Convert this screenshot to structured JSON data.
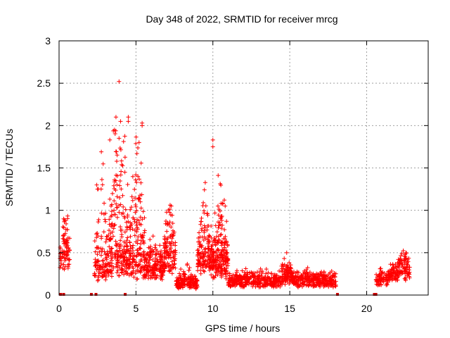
{
  "chart_data": {
    "type": "scatter",
    "title": "Day 348 of 2022, SRMTID for receiver mrcg",
    "xlabel": "GPS time / hours",
    "ylabel": "SRMTID / TECUs",
    "xlim": [
      0,
      24
    ],
    "ylim": [
      0,
      3
    ],
    "xticks": [
      0,
      5,
      10,
      15,
      20
    ],
    "xtick_labels": [
      "0",
      "5",
      "10",
      "15",
      "20"
    ],
    "yticks": [
      0,
      0.5,
      1,
      1.5,
      2,
      2.5,
      3
    ],
    "ytick_labels": [
      "0",
      "0.5",
      "1",
      "1.5",
      "2",
      "2.5",
      "3"
    ],
    "grid": true,
    "marker": "+",
    "series_color": "#ff0000",
    "axis_marks_at_zero_color": "#cc0000",
    "segments": [
      {
        "start": 0.05,
        "end": 0.15,
        "base": 0.35,
        "amp": 0.1,
        "spread": 0.15,
        "count": 12
      },
      {
        "start": 0.2,
        "end": 0.7,
        "base": 0.45,
        "amp": 0.35,
        "spread": 0.25,
        "count": 70
      },
      {
        "start": 2.3,
        "end": 3.2,
        "base": 0.25,
        "amp": 0.9,
        "spread": 0.6,
        "count": 110
      },
      {
        "start": 3.2,
        "end": 4.5,
        "base": 0.35,
        "amp": 1.2,
        "spread": 1.0,
        "count": 220
      },
      {
        "start": 4.5,
        "end": 5.6,
        "base": 0.3,
        "amp": 0.9,
        "spread": 0.8,
        "count": 180
      },
      {
        "start": 5.6,
        "end": 6.8,
        "base": 0.25,
        "amp": 0.25,
        "spread": 0.25,
        "count": 160
      },
      {
        "start": 6.8,
        "end": 7.6,
        "base": 0.4,
        "amp": 0.45,
        "spread": 0.35,
        "count": 110
      },
      {
        "start": 7.6,
        "end": 9.0,
        "base": 0.12,
        "amp": 0.1,
        "spread": 0.12,
        "count": 170
      },
      {
        "start": 9.0,
        "end": 10.0,
        "base": 0.35,
        "amp": 0.55,
        "spread": 0.5,
        "count": 160
      },
      {
        "start": 10.0,
        "end": 11.0,
        "base": 0.3,
        "amp": 0.6,
        "spread": 0.6,
        "count": 200
      },
      {
        "start": 11.0,
        "end": 14.4,
        "base": 0.15,
        "amp": 0.05,
        "spread": 0.1,
        "count": 330
      },
      {
        "start": 14.4,
        "end": 15.2,
        "base": 0.2,
        "amp": 0.1,
        "spread": 0.15,
        "count": 110
      },
      {
        "start": 15.2,
        "end": 18.0,
        "base": 0.15,
        "amp": 0.05,
        "spread": 0.1,
        "count": 280
      },
      {
        "start": 20.6,
        "end": 21.4,
        "base": 0.17,
        "amp": 0.05,
        "spread": 0.08,
        "count": 70
      },
      {
        "start": 21.4,
        "end": 22.0,
        "base": 0.22,
        "amp": 0.1,
        "spread": 0.12,
        "count": 60
      },
      {
        "start": 22.0,
        "end": 22.8,
        "base": 0.28,
        "amp": 0.18,
        "spread": 0.15,
        "count": 90
      }
    ],
    "outliers": [
      {
        "x": 3.9,
        "y": 2.52
      },
      {
        "x": 3.7,
        "y": 2.1
      },
      {
        "x": 4.5,
        "y": 2.1
      },
      {
        "x": 4.5,
        "y": 2.05
      },
      {
        "x": 4.0,
        "y": 2.05
      },
      {
        "x": 5.4,
        "y": 2.03
      },
      {
        "x": 5.4,
        "y": 2.0
      },
      {
        "x": 3.3,
        "y": 1.83
      },
      {
        "x": 5.2,
        "y": 1.8
      },
      {
        "x": 10.0,
        "y": 1.83
      },
      {
        "x": 10.0,
        "y": 1.75
      },
      {
        "x": 3.6,
        "y": 1.95
      },
      {
        "x": 3.9,
        "y": 1.85
      },
      {
        "x": 2.45,
        "y": 1.3
      },
      {
        "x": 2.5,
        "y": 1.25
      },
      {
        "x": 7.3,
        "y": 1.05
      },
      {
        "x": 10.8,
        "y": 1.05
      },
      {
        "x": 14.8,
        "y": 0.5
      },
      {
        "x": 22.5,
        "y": 0.48
      },
      {
        "x": 0.4,
        "y": 0.88
      },
      {
        "x": 0.3,
        "y": 0.9
      }
    ],
    "zero_marks_x": [
      0.1,
      0.3,
      2.1,
      2.4,
      4.3,
      18.1,
      20.5,
      20.6
    ]
  }
}
